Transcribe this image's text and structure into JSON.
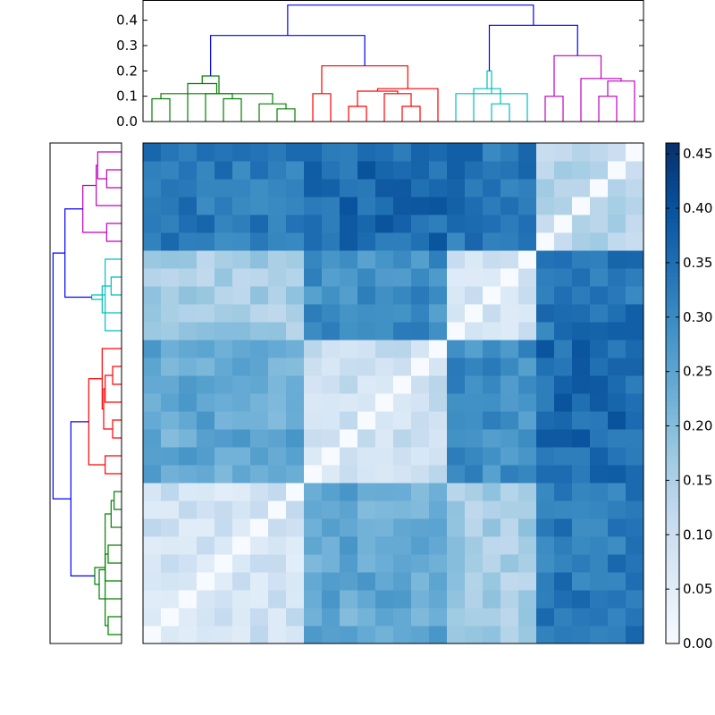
{
  "chart_data": [
    {
      "type": "heatmap",
      "title": "",
      "n": 28,
      "colorscale": "Blues",
      "vmin": 0.0,
      "vmax": 0.46,
      "colorbar_ticks": [
        0.0,
        0.05,
        0.1,
        0.15,
        0.2,
        0.25,
        0.3,
        0.35,
        0.4,
        0.45
      ],
      "colorbar_tick_labels": [
        "0.00",
        "0.05",
        "0.10",
        "0.15",
        "0.20",
        "0.25",
        "0.30",
        "0.35",
        "0.40",
        "0.45"
      ],
      "block_order": [
        "green",
        "red",
        "cyan",
        "magenta"
      ],
      "block_sizes": [
        9,
        8,
        5,
        6
      ],
      "block_matrix": [
        [
          0.09,
          0.24,
          0.16,
          0.33
        ],
        [
          0.24,
          0.1,
          0.29,
          0.36
        ],
        [
          0.16,
          0.29,
          0.09,
          0.34
        ],
        [
          0.33,
          0.36,
          0.34,
          0.13
        ]
      ],
      "grid": false
    },
    {
      "type": "dendrogram",
      "position": "top",
      "ylim": [
        0.0,
        0.48
      ],
      "yticks": [
        0.0,
        0.1,
        0.2,
        0.3,
        0.4
      ],
      "ytick_labels": [
        "0.0",
        "0.1",
        "0.2",
        "0.3",
        "0.4"
      ],
      "cluster_colors": {
        "green": "#008000",
        "red": "#ff0000",
        "cyan": "#00bfbf",
        "magenta": "#bf00bf",
        "link": "#0000ff"
      },
      "links": [
        {
          "a": 0,
          "b": 1,
          "h": 0.09,
          "color": "green"
        },
        {
          "a": 4,
          "b": 5,
          "h": 0.09,
          "color": "green"
        },
        {
          "a": 7,
          "b": 8,
          "h": 0.05,
          "color": "green"
        },
        {
          "a": 6,
          "b": 30,
          "h": 0.07,
          "color": "green"
        },
        {
          "a": 28,
          "b": 31,
          "h": 0.11,
          "color": "green"
        },
        {
          "a": 3,
          "b": 29,
          "h": 0.11,
          "color": "green"
        },
        {
          "a": 2,
          "b": 32,
          "h": 0.15,
          "color": "green"
        },
        {
          "a": 33,
          "b": 34,
          "h": 0.18,
          "color": "green"
        },
        {
          "a": 11,
          "b": 12,
          "h": 0.06,
          "color": "red"
        },
        {
          "a": 14,
          "b": 15,
          "h": 0.06,
          "color": "red"
        },
        {
          "a": 13,
          "b": 37,
          "h": 0.11,
          "color": "red"
        },
        {
          "a": 36,
          "b": 38,
          "h": 0.12,
          "color": "red"
        },
        {
          "a": 9,
          "b": 10,
          "h": 0.11,
          "color": "red"
        },
        {
          "a": 16,
          "b": 39,
          "h": 0.13,
          "color": "red"
        },
        {
          "a": 40,
          "b": 41,
          "h": 0.22,
          "color": "red"
        },
        {
          "a": 19,
          "b": 20,
          "h": 0.07,
          "color": "cyan"
        },
        {
          "a": 18,
          "b": 43,
          "h": 0.13,
          "color": "cyan"
        },
        {
          "a": 17,
          "b": 21,
          "h": 0.11,
          "color": "cyan"
        },
        {
          "a": 44,
          "b": 45,
          "h": 0.2,
          "color": "cyan"
        },
        {
          "a": 22,
          "b": 23,
          "h": 0.1,
          "color": "magenta"
        },
        {
          "a": 25,
          "b": 26,
          "h": 0.1,
          "color": "magenta"
        },
        {
          "a": 27,
          "b": 48,
          "h": 0.16,
          "color": "magenta"
        },
        {
          "a": 24,
          "b": 49,
          "h": 0.17,
          "color": "magenta"
        },
        {
          "a": 47,
          "b": 50,
          "h": 0.26,
          "color": "magenta"
        },
        {
          "a": 35,
          "b": 42,
          "h": 0.34,
          "color": "link"
        },
        {
          "a": 46,
          "b": 51,
          "h": 0.38,
          "color": "link"
        },
        {
          "a": 52,
          "b": 53,
          "h": 0.46,
          "color": "link"
        }
      ]
    },
    {
      "type": "dendrogram",
      "position": "left",
      "note_structure": "same tree as top, mirrored"
    }
  ]
}
